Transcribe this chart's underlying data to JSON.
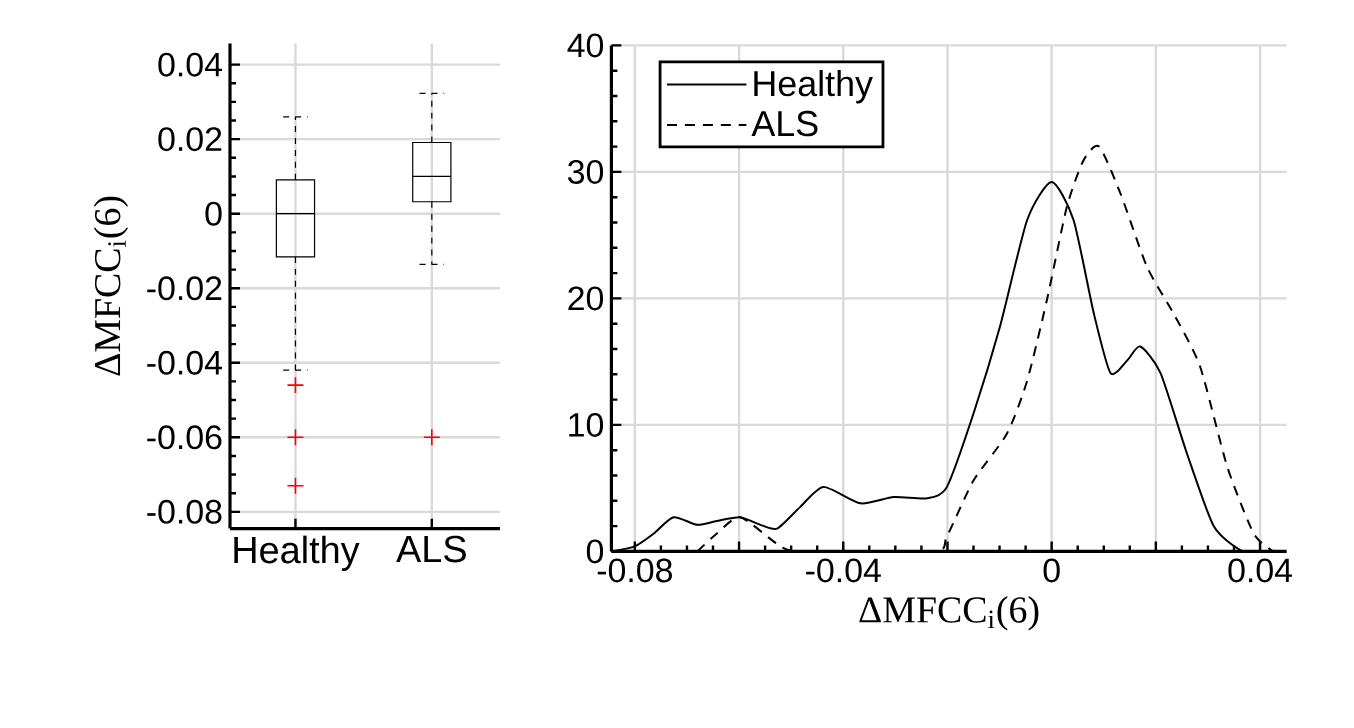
{
  "chart_data": [
    {
      "type": "box",
      "categories": [
        "Healthy",
        "ALS"
      ],
      "ylabel": "ΔMFCC$_{i}$(6)",
      "ylim": [
        -0.0845,
        0.0457
      ],
      "yticks": [
        -0.08,
        -0.06,
        -0.04,
        -0.02,
        0,
        0.02,
        0.04
      ],
      "grid": true,
      "boxes": [
        {
          "low": -0.042,
          "q1": -0.0116,
          "median": 0,
          "q3": 0.0091,
          "high": 0.026,
          "outliers": [
            -0.046,
            -0.06,
            -0.073
          ]
        },
        {
          "low": -0.0136,
          "q1": 0.0032,
          "median": 0.01,
          "q3": 0.0191,
          "high": 0.0323,
          "outliers": [
            -0.06
          ]
        }
      ]
    },
    {
      "type": "line",
      "xlabel": "ΔMFCC$_{i}$(6)",
      "xlim": [
        -0.0845,
        0.0451
      ],
      "ylim": [
        0,
        40
      ],
      "xticks": [
        -0.08,
        {
          "value": -0.06,
          "label": null
        },
        -0.04,
        {
          "value": -0.02,
          "label": null
        },
        0,
        {
          "value": 0.02,
          "label": null
        },
        0.04
      ],
      "yticks": [
        0,
        10,
        20,
        30,
        40
      ],
      "grid": true,
      "legend": "top left",
      "series": [
        {
          "name": "Healthy",
          "color": "#000000",
          "line_style": "solid",
          "x": [
            -0.0845,
            -0.08,
            -0.0764,
            -0.0726,
            -0.068,
            -0.0643,
            -0.0598,
            -0.0559,
            -0.0527,
            -0.0483,
            -0.0438,
            -0.0367,
            -0.0303,
            -0.0239,
            -0.0201,
            -0.015,
            -0.0099,
            -0.0047,
            0,
            0.0042,
            0.0081,
            0.0113,
            0.0145,
            0.017,
            0.0209,
            0.026,
            0.0311,
            0.0362,
            0.04
          ],
          "values": [
            0,
            0.4,
            1.4,
            2.7,
            2.1,
            2.4,
            2.7,
            2.1,
            1.8,
            3.5,
            5.1,
            3.8,
            4.3,
            4.2,
            5.1,
            10.9,
            17.8,
            26.2,
            29.2,
            26.2,
            18.8,
            14.1,
            15.1,
            16.2,
            14.1,
            7.7,
            2.0,
            0.1,
            0
          ]
        },
        {
          "name": "ALS",
          "color": "#000000",
          "line_style": "dashed",
          "x": [
            -0.068,
            -0.0643,
            -0.0598,
            -0.0527,
            -0.0483,
            -0.0227,
            -0.0201,
            -0.015,
            -0.0086,
            -0.0047,
            -0.0009,
            0.0029,
            0.0061,
            0.0091,
            0.0132,
            0.0183,
            0.0234,
            0.0285,
            0.0337,
            0.0388,
            0.0426
          ],
          "values": [
            0,
            1.4,
            2.7,
            0.6,
            0,
            0,
            1.2,
            5.6,
            9.3,
            13.5,
            19.9,
            27.2,
            30.9,
            32.0,
            28.3,
            22.5,
            18.8,
            14.6,
            6.7,
            1.4,
            0
          ]
        }
      ]
    }
  ]
}
